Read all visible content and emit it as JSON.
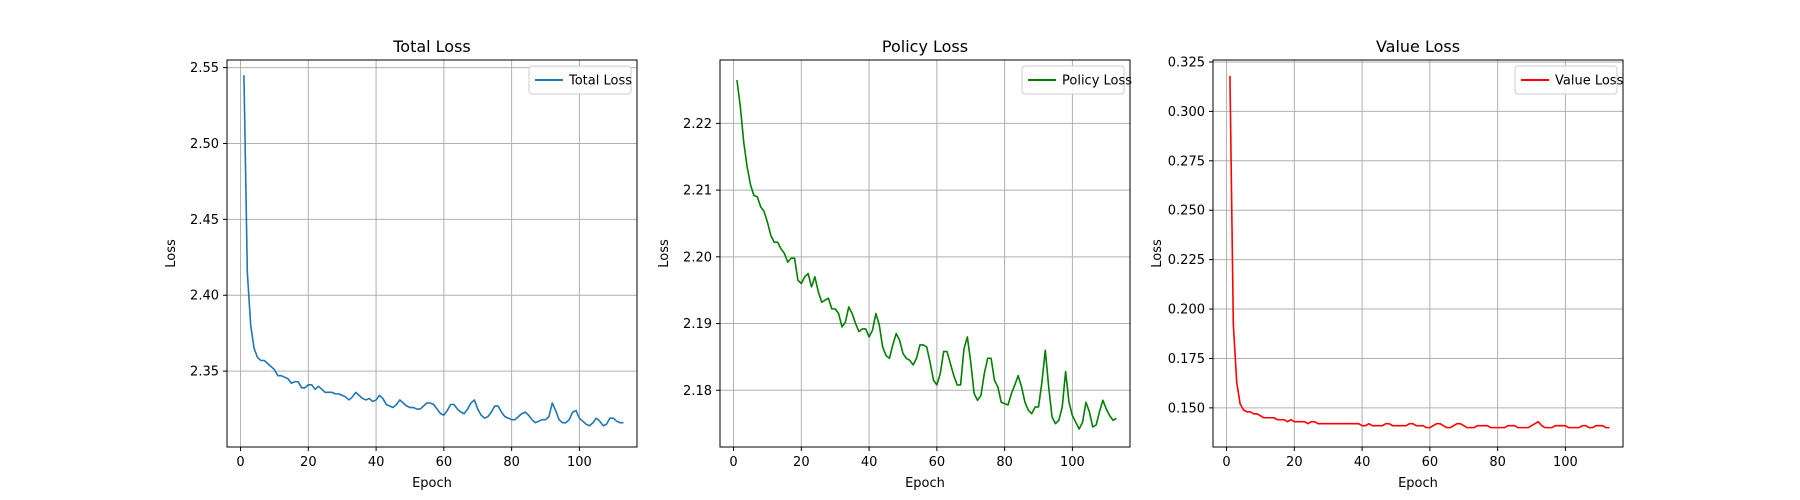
{
  "chart_data": [
    {
      "type": "line",
      "title": "Total Loss",
      "xlabel": "Epoch",
      "ylabel": "Loss",
      "xlim": [
        -4,
        117
      ],
      "ylim": [
        2.3,
        2.555
      ],
      "xticks": [
        0,
        20,
        40,
        60,
        80,
        100
      ],
      "yticks": [
        2.35,
        2.4,
        2.45,
        2.5,
        2.55
      ],
      "ytick_labels": [
        "2.35",
        "2.40",
        "2.45",
        "2.50",
        "2.55"
      ],
      "grid": true,
      "legend": "top-right",
      "series": [
        {
          "name": "Total Loss",
          "color": "#1f77b4",
          "x": [
            1,
            2,
            3,
            4,
            5,
            6,
            7,
            8,
            9,
            10,
            11,
            12,
            13,
            14,
            15,
            16,
            17,
            18,
            19,
            20,
            21,
            22,
            23,
            24,
            25,
            26,
            27,
            28,
            29,
            30,
            31,
            32,
            33,
            34,
            35,
            36,
            37,
            38,
            39,
            40,
            41,
            42,
            43,
            44,
            45,
            46,
            47,
            48,
            49,
            50,
            51,
            52,
            53,
            54,
            55,
            56,
            57,
            58,
            59,
            60,
            61,
            62,
            63,
            64,
            65,
            66,
            67,
            68,
            69,
            70,
            71,
            72,
            73,
            74,
            75,
            76,
            77,
            78,
            79,
            80,
            81,
            82,
            83,
            84,
            85,
            86,
            87,
            88,
            89,
            90,
            91,
            92,
            93,
            94,
            95,
            96,
            97,
            98,
            99,
            100,
            101,
            102,
            103,
            104,
            105,
            106,
            107,
            108,
            109,
            110,
            111,
            112,
            113
          ],
          "y": [
            2.545,
            2.415,
            2.38,
            2.365,
            2.359,
            2.357,
            2.357,
            2.355,
            2.353,
            2.351,
            2.347,
            2.347,
            2.346,
            2.345,
            2.342,
            2.343,
            2.343,
            2.339,
            2.339,
            2.341,
            2.341,
            2.338,
            2.34,
            2.338,
            2.336,
            2.336,
            2.336,
            2.335,
            2.335,
            2.334,
            2.333,
            2.331,
            2.333,
            2.336,
            2.334,
            2.332,
            2.331,
            2.332,
            2.33,
            2.331,
            2.334,
            2.332,
            2.328,
            2.327,
            2.326,
            2.328,
            2.331,
            2.329,
            2.327,
            2.326,
            2.326,
            2.325,
            2.325,
            2.327,
            2.329,
            2.329,
            2.328,
            2.325,
            2.322,
            2.321,
            2.324,
            2.328,
            2.328,
            2.325,
            2.323,
            2.322,
            2.325,
            2.329,
            2.331,
            2.325,
            2.321,
            2.319,
            2.32,
            2.323,
            2.327,
            2.327,
            2.323,
            2.32,
            2.319,
            2.318,
            2.318,
            2.32,
            2.322,
            2.323,
            2.321,
            2.318,
            2.316,
            2.317,
            2.318,
            2.318,
            2.32,
            2.329,
            2.324,
            2.318,
            2.316,
            2.316,
            2.318,
            2.323,
            2.324,
            2.319,
            2.317,
            2.315,
            2.314,
            2.316,
            2.319,
            2.317,
            2.314,
            2.315,
            2.319,
            2.319,
            2.317,
            2.316,
            2.316
          ]
        }
      ]
    },
    {
      "type": "line",
      "title": "Policy Loss",
      "xlabel": "Epoch",
      "ylabel": "Loss",
      "xlim": [
        -4,
        117
      ],
      "ylim": [
        2.1715,
        2.2295
      ],
      "xticks": [
        0,
        20,
        40,
        60,
        80,
        100
      ],
      "yticks": [
        2.18,
        2.19,
        2.2,
        2.21,
        2.22
      ],
      "ytick_labels": [
        "2.18",
        "2.19",
        "2.20",
        "2.21",
        "2.22"
      ],
      "grid": true,
      "legend": "top-right",
      "series": [
        {
          "name": "Policy Loss",
          "color": "#008000",
          "x": [
            1,
            2,
            3,
            4,
            5,
            6,
            7,
            8,
            9,
            10,
            11,
            12,
            13,
            14,
            15,
            16,
            17,
            18,
            19,
            20,
            21,
            22,
            23,
            24,
            25,
            26,
            27,
            28,
            29,
            30,
            31,
            32,
            33,
            34,
            35,
            36,
            37,
            38,
            39,
            40,
            41,
            42,
            43,
            44,
            45,
            46,
            47,
            48,
            49,
            50,
            51,
            52,
            53,
            54,
            55,
            56,
            57,
            58,
            59,
            60,
            61,
            62,
            63,
            64,
            65,
            66,
            67,
            68,
            69,
            70,
            71,
            72,
            73,
            74,
            75,
            76,
            77,
            78,
            79,
            80,
            81,
            82,
            83,
            84,
            85,
            86,
            87,
            88,
            89,
            90,
            91,
            92,
            93,
            94,
            95,
            96,
            97,
            98,
            99,
            100,
            101,
            102,
            103,
            104,
            105,
            106,
            107,
            108,
            109,
            110,
            111,
            112,
            113
          ],
          "y": [
            2.2265,
            2.2225,
            2.2172,
            2.2135,
            2.2108,
            2.2092,
            2.209,
            2.2075,
            2.2068,
            2.2052,
            2.2032,
            2.2022,
            2.2022,
            2.2012,
            2.2005,
            2.1992,
            2.1998,
            2.1998,
            2.1965,
            2.196,
            2.197,
            2.1975,
            2.1955,
            2.197,
            2.1948,
            2.1932,
            2.1935,
            2.1938,
            2.1922,
            2.1922,
            2.1915,
            2.1895,
            2.1902,
            2.1925,
            2.1915,
            2.19,
            2.1888,
            2.1892,
            2.1892,
            2.188,
            2.189,
            2.1915,
            2.1898,
            2.1865,
            2.1852,
            2.1848,
            2.1868,
            2.1885,
            2.1875,
            2.1855,
            2.1848,
            2.1845,
            2.1838,
            2.1848,
            2.1868,
            2.1868,
            2.1865,
            2.1842,
            2.1815,
            2.1808,
            2.1825,
            2.1858,
            2.1858,
            2.184,
            2.1822,
            2.1808,
            2.1808,
            2.1862,
            2.188,
            2.1842,
            2.1795,
            2.1785,
            2.1792,
            2.1825,
            2.1848,
            2.1848,
            2.1815,
            2.1805,
            2.1782,
            2.178,
            2.1778,
            2.1795,
            2.1808,
            2.1822,
            2.1805,
            2.1782,
            2.177,
            2.1765,
            2.1775,
            2.1775,
            2.1812,
            2.186,
            2.1805,
            2.176,
            2.175,
            2.1755,
            2.1775,
            2.1828,
            2.1782,
            2.1762,
            2.1752,
            2.1742,
            2.1752,
            2.1782,
            2.1768,
            2.1745,
            2.1748,
            2.1768,
            2.1785,
            2.1772,
            2.1762,
            2.1755,
            2.1758
          ]
        }
      ]
    },
    {
      "type": "line",
      "title": "Value Loss",
      "xlabel": "Epoch",
      "ylabel": "Loss",
      "xlim": [
        -4,
        117
      ],
      "ylim": [
        0.1302,
        0.326
      ],
      "xticks": [
        0,
        20,
        40,
        60,
        80,
        100
      ],
      "yticks": [
        0.15,
        0.175,
        0.2,
        0.225,
        0.25,
        0.275,
        0.3,
        0.325
      ],
      "ytick_labels": [
        "0.150",
        "0.175",
        "0.200",
        "0.225",
        "0.250",
        "0.275",
        "0.300",
        "0.325"
      ],
      "grid": true,
      "legend": "top-right",
      "series": [
        {
          "name": "Value Loss",
          "color": "#ff0000",
          "x": [
            1,
            2,
            3,
            4,
            5,
            6,
            7,
            8,
            9,
            10,
            11,
            12,
            13,
            14,
            15,
            16,
            17,
            18,
            19,
            20,
            21,
            22,
            23,
            24,
            25,
            26,
            27,
            28,
            29,
            30,
            31,
            32,
            33,
            34,
            35,
            36,
            37,
            38,
            39,
            40,
            41,
            42,
            43,
            44,
            45,
            46,
            47,
            48,
            49,
            50,
            51,
            52,
            53,
            54,
            55,
            56,
            57,
            58,
            59,
            60,
            61,
            62,
            63,
            64,
            65,
            66,
            67,
            68,
            69,
            70,
            71,
            72,
            73,
            74,
            75,
            76,
            77,
            78,
            79,
            80,
            81,
            82,
            83,
            84,
            85,
            86,
            87,
            88,
            89,
            90,
            91,
            92,
            93,
            94,
            95,
            96,
            97,
            98,
            99,
            100,
            101,
            102,
            103,
            104,
            105,
            106,
            107,
            108,
            109,
            110,
            111,
            112,
            113
          ],
          "y": [
            0.318,
            0.192,
            0.163,
            0.152,
            0.149,
            0.148,
            0.148,
            0.147,
            0.147,
            0.146,
            0.145,
            0.145,
            0.145,
            0.145,
            0.144,
            0.144,
            0.144,
            0.143,
            0.144,
            0.143,
            0.143,
            0.143,
            0.143,
            0.142,
            0.143,
            0.143,
            0.142,
            0.142,
            0.142,
            0.142,
            0.142,
            0.142,
            0.142,
            0.142,
            0.142,
            0.142,
            0.142,
            0.142,
            0.142,
            0.141,
            0.141,
            0.142,
            0.141,
            0.141,
            0.141,
            0.141,
            0.142,
            0.142,
            0.141,
            0.141,
            0.141,
            0.141,
            0.141,
            0.142,
            0.142,
            0.141,
            0.141,
            0.141,
            0.14,
            0.14,
            0.141,
            0.142,
            0.142,
            0.141,
            0.14,
            0.14,
            0.141,
            0.142,
            0.142,
            0.141,
            0.14,
            0.14,
            0.14,
            0.141,
            0.141,
            0.141,
            0.141,
            0.14,
            0.14,
            0.14,
            0.14,
            0.14,
            0.141,
            0.141,
            0.141,
            0.14,
            0.14,
            0.14,
            0.14,
            0.141,
            0.142,
            0.143,
            0.141,
            0.14,
            0.14,
            0.14,
            0.141,
            0.141,
            0.141,
            0.141,
            0.14,
            0.14,
            0.14,
            0.14,
            0.141,
            0.141,
            0.14,
            0.14,
            0.141,
            0.141,
            0.141,
            0.14,
            0.14
          ]
        }
      ]
    }
  ]
}
